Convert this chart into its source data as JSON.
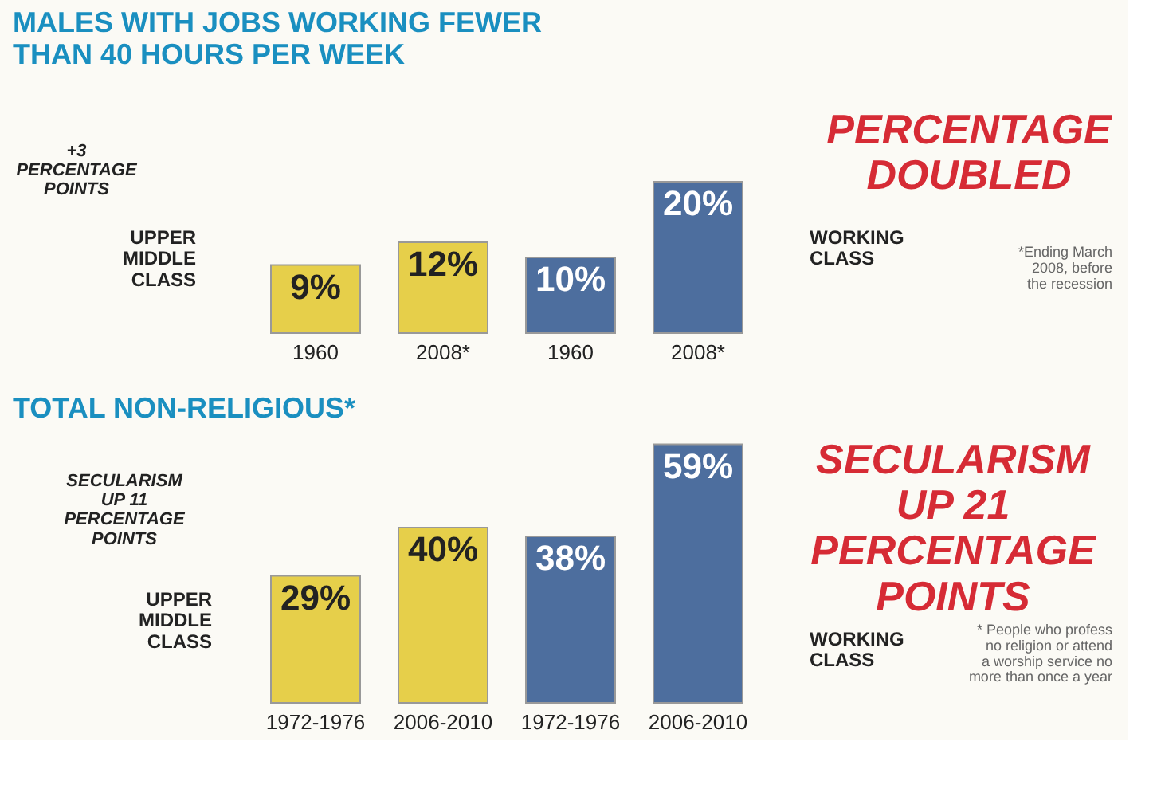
{
  "chart_data": [
    {
      "type": "bar",
      "title": "MALES WITH JOBS WORKING FEWER THAN 40 HOURS PER WEEK",
      "categories": [
        "1960",
        "2008*",
        "1960",
        "2008*"
      ],
      "values": [
        9,
        12,
        10,
        20
      ],
      "colors": [
        "#e6cf4a",
        "#e6cf4a",
        "#4d6e9e",
        "#4d6e9e"
      ],
      "value_labels": [
        "9%",
        "12%",
        "10%",
        "20%"
      ],
      "annotations": [
        "PERCENTAGE DOUBLED",
        "+3 PERCENTAGE POINTS",
        "UPPER MIDDLE CLASS",
        "WORKING CLASS",
        "*Ending March 2008, before the recession"
      ]
    },
    {
      "type": "bar",
      "title": "TOTAL NON-RELIGIOUS*",
      "categories": [
        "1972-1976",
        "2006-2010",
        "1972-1976",
        "2006-2010"
      ],
      "values": [
        29,
        40,
        38,
        59
      ],
      "colors": [
        "#e6cf4a",
        "#e6cf4a",
        "#4d6e9e",
        "#4d6e9e"
      ],
      "value_labels": [
        "29%",
        "40%",
        "38%",
        "59%"
      ],
      "annotations": [
        "SECULARISM UP 11 PERCENTAGE POINTS",
        "UPPER MIDDLE CLASS",
        "WORKING CLASS",
        "SECULARISM UP 21 PERCENTAGE POINTS",
        "* People who profess no religion or attend a worship service no more than once a year"
      ]
    }
  ]
}
